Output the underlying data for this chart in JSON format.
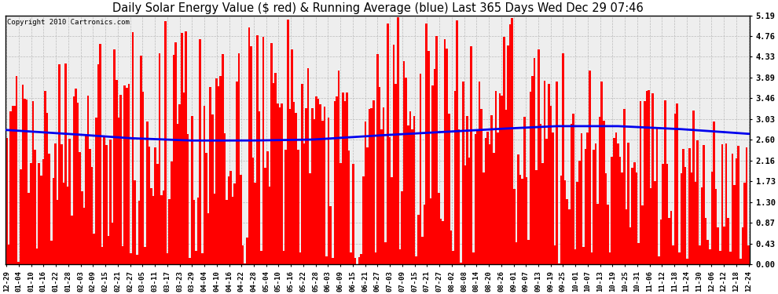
{
  "title": "Daily Solar Energy Value ($ red) & Running Average (blue) Last 365 Days Wed Dec 29 07:46",
  "copyright_text": "Copyright 2010 Cartronics.com",
  "yticks": [
    0.0,
    0.43,
    0.87,
    1.3,
    1.73,
    2.16,
    2.6,
    3.03,
    3.46,
    3.89,
    4.33,
    4.76,
    5.19
  ],
  "ylim": [
    0.0,
    5.19
  ],
  "bar_color": "#FF0000",
  "avg_color": "#0000EE",
  "bg_color": "#FFFFFF",
  "plot_bg_color": "#EEEEEE",
  "grid_color": "#BBBBBB",
  "title_fontsize": 10.5,
  "copyright_fontsize": 6.5,
  "x_tick_labels": [
    "12-29",
    "01-04",
    "01-10",
    "01-16",
    "01-22",
    "01-28",
    "02-03",
    "02-09",
    "02-15",
    "02-21",
    "02-27",
    "03-05",
    "03-11",
    "03-17",
    "03-23",
    "03-29",
    "04-04",
    "04-10",
    "04-16",
    "04-22",
    "04-28",
    "05-04",
    "05-10",
    "05-16",
    "05-22",
    "05-28",
    "06-03",
    "06-09",
    "06-15",
    "06-21",
    "06-27",
    "07-03",
    "07-09",
    "07-15",
    "07-21",
    "07-27",
    "08-02",
    "08-08",
    "08-14",
    "08-20",
    "08-26",
    "09-01",
    "09-07",
    "09-13",
    "09-19",
    "09-25",
    "10-01",
    "10-07",
    "10-13",
    "10-19",
    "10-25",
    "10-31",
    "11-06",
    "11-12",
    "11-18",
    "11-24",
    "11-30",
    "12-06",
    "12-12",
    "12-18",
    "12-24"
  ],
  "avg_x": [
    0,
    30,
    60,
    90,
    120,
    150,
    180,
    210,
    240,
    270,
    300,
    330,
    364
  ],
  "avg_y": [
    2.8,
    2.72,
    2.63,
    2.58,
    2.58,
    2.6,
    2.68,
    2.75,
    2.82,
    2.88,
    2.88,
    2.82,
    2.72
  ]
}
